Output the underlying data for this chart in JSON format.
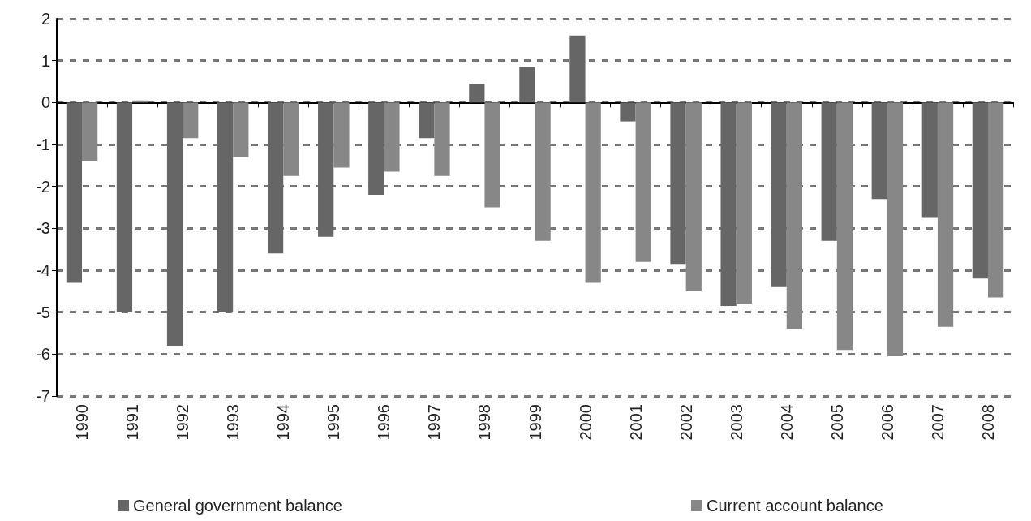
{
  "chart_data": {
    "type": "bar",
    "categories": [
      "1990",
      "1991",
      "1992",
      "1993",
      "1994",
      "1995",
      "1996",
      "1997",
      "1998",
      "1999",
      "2000",
      "2001",
      "2002",
      "2003",
      "2004",
      "2005",
      "2006",
      "2007",
      "2008"
    ],
    "series": [
      {
        "name": "General government balance",
        "color": "#666666",
        "values": [
          -4.3,
          -5.0,
          -5.8,
          -5.0,
          -3.6,
          -3.2,
          -2.2,
          -0.85,
          0.45,
          0.85,
          1.6,
          -0.45,
          -3.85,
          -4.85,
          -4.4,
          -3.3,
          -2.3,
          -2.75,
          -4.2
        ]
      },
      {
        "name": "Current account balance",
        "color": "#878787",
        "values": [
          -1.4,
          0.05,
          -0.85,
          -1.3,
          -1.75,
          -1.55,
          -1.65,
          -1.75,
          -2.5,
          -3.3,
          -4.3,
          -3.8,
          -4.5,
          -4.8,
          -5.4,
          -5.9,
          -6.05,
          -5.35,
          -4.65
        ]
      }
    ],
    "ylim": [
      -7,
      2
    ],
    "yticks": [
      -7,
      -6,
      -5,
      -4,
      -3,
      -2,
      -1,
      0,
      1,
      2
    ],
    "grid": "y",
    "legend": "bottom"
  }
}
